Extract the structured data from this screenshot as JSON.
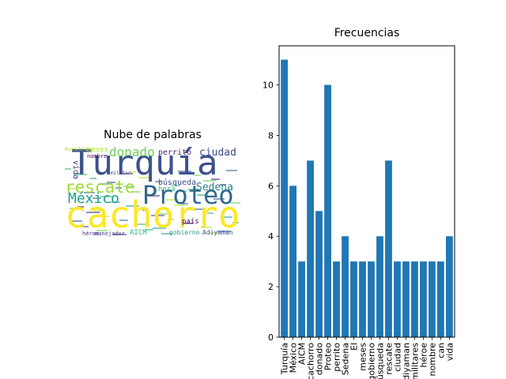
{
  "wordcloud": {
    "title": "Nube de palabras",
    "words": [
      {
        "text": "Turquía",
        "color": "#3b528b"
      },
      {
        "text": "cachorro",
        "color": "#fde725"
      },
      {
        "text": "Proteo",
        "color": "#31688e"
      },
      {
        "text": "rescate",
        "color": "#a0da39"
      },
      {
        "text": "México",
        "color": "#1f9e89"
      },
      {
        "text": "donado",
        "color": "#6ece58"
      },
      {
        "text": "Sedena",
        "color": "#26828e"
      },
      {
        "text": "ciudad",
        "color": "#3e4989"
      },
      {
        "text": "perrito",
        "color": "#482878"
      },
      {
        "text": "búsqueda",
        "color": "#3e4a89"
      },
      {
        "text": "meses",
        "color": "#b5de2b"
      },
      {
        "text": "vida",
        "color": "#46327e"
      },
      {
        "text": "hora",
        "color": "#35b779"
      },
      {
        "text": "país",
        "color": "#440154"
      },
      {
        "text": "militar",
        "color": "#414487"
      },
      {
        "text": "gobierno",
        "color": "#1f9e89"
      },
      {
        "text": "Adiyaman",
        "color": "#3b528b"
      },
      {
        "text": "AICM",
        "color": "#35b779"
      },
      {
        "text": "héroe",
        "color": "#482878"
      },
      {
        "text": "manejador",
        "color": "#443983"
      },
      {
        "text": "nombre",
        "color": "#440154"
      },
      {
        "text": "muestra",
        "color": "#b5de2b"
      }
    ]
  },
  "chart_data": {
    "type": "bar",
    "title": "Frecuencias",
    "categories": [
      "Turquía",
      "México",
      "AICM",
      "cachorro",
      "donado",
      "Proteo",
      "perrito",
      "Sedena",
      "El",
      "meses",
      "gobierno",
      "búsqueda",
      "rescate",
      "ciudad",
      "Adiyaman",
      "militares",
      "héroe",
      "nombre",
      "can",
      "vida"
    ],
    "values": [
      11,
      6,
      3,
      7,
      5,
      10,
      3,
      4,
      3,
      3,
      3,
      4,
      7,
      3,
      3,
      3,
      3,
      3,
      3,
      4
    ],
    "yticks": [
      0,
      2,
      4,
      6,
      8,
      10
    ],
    "ylim": [
      0,
      11.55
    ],
    "bar_color": "#1f77b4",
    "xlabel": "",
    "ylabel": ""
  }
}
